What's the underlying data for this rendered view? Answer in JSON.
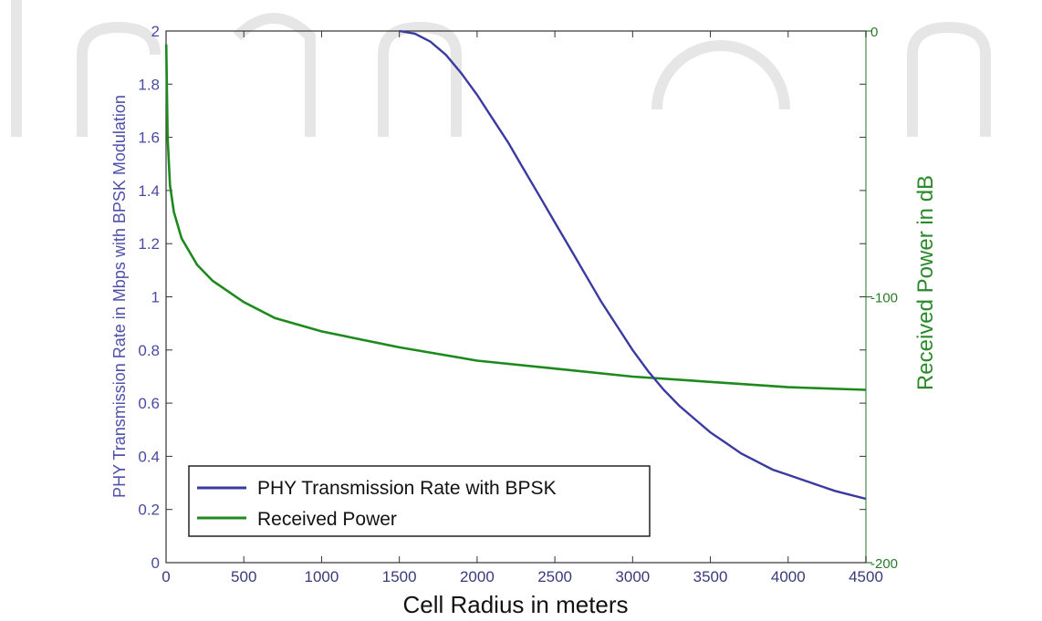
{
  "chart_data": {
    "type": "line",
    "xlabel": "Cell Radius in meters",
    "ylabel_left": "PHY Transmission Rate in Mbps with BPSK Modulation",
    "ylabel_right": "Received Power in dB",
    "xlim": [
      0,
      4500
    ],
    "ylim_left": [
      0,
      2
    ],
    "ylim_right": [
      -200,
      0
    ],
    "x_ticks": [
      "0",
      "500",
      "1000",
      "1500",
      "2000",
      "2500",
      "3000",
      "3500",
      "4000",
      "4500"
    ],
    "y_left_ticks": [
      "0",
      "0.2",
      "0.4",
      "0.6",
      "0.8",
      "1",
      "1.2",
      "1.4",
      "1.6",
      "1.8",
      "2"
    ],
    "y_right_ticks": [
      "0",
      "-100",
      "-200"
    ],
    "grid": false,
    "legend_position": "bottom-left",
    "series": [
      {
        "name": "PHY Transmission Rate with BPSK",
        "axis": "left",
        "color": "#3a3aa0",
        "x": [
          1500,
          1600,
          1700,
          1800,
          1900,
          2000,
          2100,
          2200,
          2300,
          2400,
          2500,
          2600,
          2700,
          2800,
          2900,
          3000,
          3100,
          3200,
          3300,
          3400,
          3500,
          3600,
          3700,
          3800,
          3900,
          4000,
          4100,
          4200,
          4300,
          4400,
          4500
        ],
        "y": [
          2.0,
          1.99,
          1.96,
          1.91,
          1.84,
          1.76,
          1.67,
          1.58,
          1.48,
          1.38,
          1.28,
          1.18,
          1.08,
          0.98,
          0.89,
          0.8,
          0.72,
          0.65,
          0.59,
          0.54,
          0.49,
          0.45,
          0.41,
          0.38,
          0.35,
          0.33,
          0.31,
          0.29,
          0.27,
          0.255,
          0.24
        ]
      },
      {
        "name": "Received Power",
        "axis": "right",
        "color": "#1e8a1e",
        "x": [
          1,
          10,
          25,
          50,
          100,
          200,
          300,
          500,
          700,
          1000,
          1500,
          2000,
          2500,
          3000,
          3500,
          4000,
          4500
        ],
        "y": [
          -5,
          -40,
          -58,
          -68,
          -78,
          -88,
          -94,
          -102,
          -108,
          -113,
          -119,
          -124,
          -127,
          -130,
          -132,
          -134,
          -135
        ]
      }
    ]
  }
}
